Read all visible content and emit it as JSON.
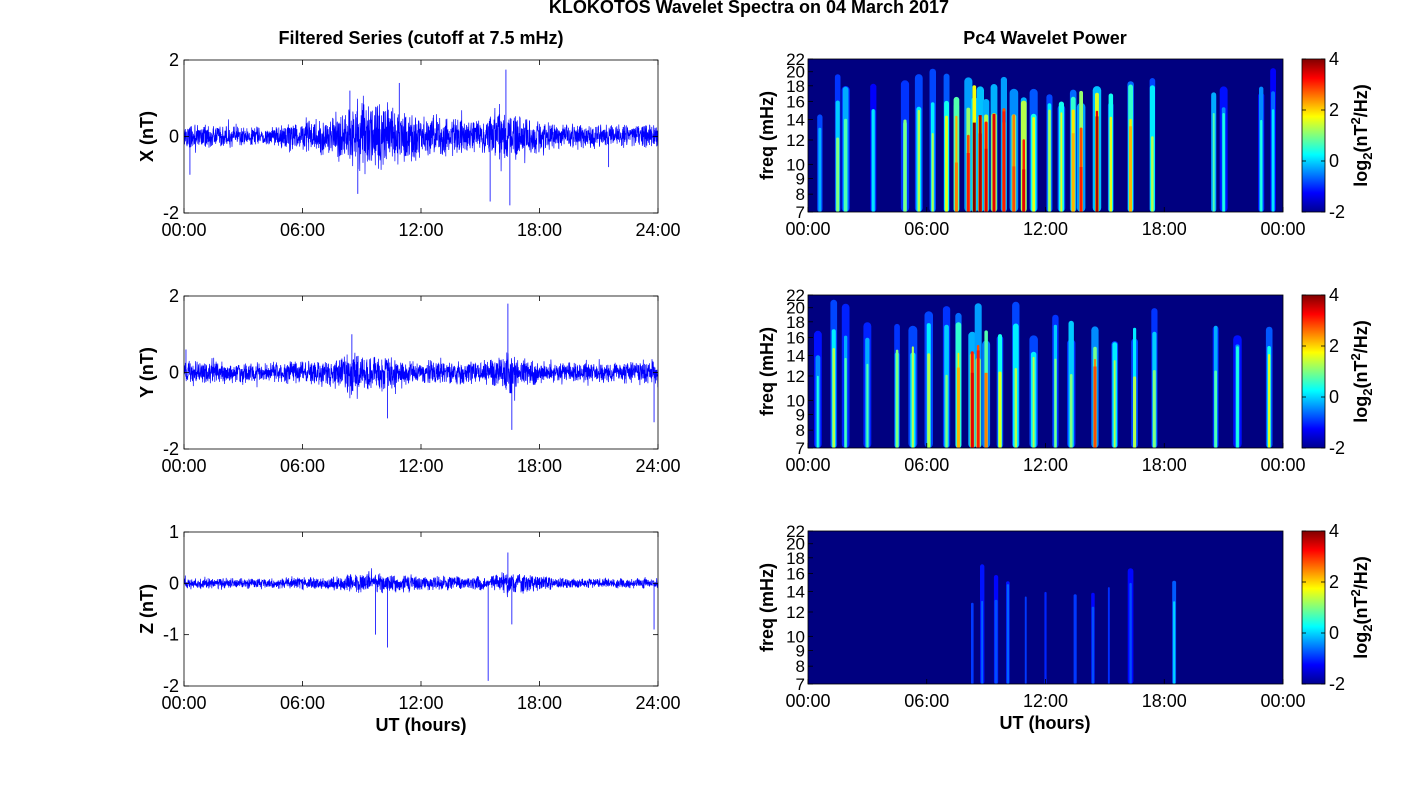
{
  "figure": {
    "title": "KLOKOTOS Wavelet Spectra on 04 March 2017",
    "left_title": "Filtered Series (cutoff at 7.5 mHz)",
    "right_title": "Pc4 Wavelet Power",
    "xlabel": "UT (hours)"
  },
  "colors": {
    "trace": "#0000ff",
    "jet_low": "#00008f",
    "jet_high": "#800000"
  },
  "chart_data": [
    {
      "type": "line",
      "panel": "X",
      "ylabel": "X (nT)",
      "x_ticks": [
        "00:00",
        "06:00",
        "12:00",
        "18:00",
        "24:00"
      ],
      "y_ticks": [
        "2",
        "0",
        "-2"
      ],
      "ylim": [
        -2,
        2
      ],
      "xlim_hours": [
        0,
        24
      ],
      "envelope": {
        "x_hours": [
          0,
          2,
          4,
          5,
          6,
          7,
          8,
          8.5,
          9,
          9.5,
          10,
          11,
          12,
          13,
          14,
          15,
          16,
          16.5,
          17,
          18,
          19,
          20,
          21,
          22,
          23,
          24
        ],
        "amplitude_nT": [
          0.3,
          0.3,
          0.25,
          0.35,
          0.4,
          0.5,
          0.7,
          0.9,
          1.0,
          0.9,
          0.9,
          0.7,
          0.6,
          0.5,
          0.5,
          0.4,
          0.6,
          0.8,
          0.6,
          0.4,
          0.3,
          0.3,
          0.3,
          0.3,
          0.3,
          0.3
        ]
      },
      "spikes": [
        {
          "x_hours": 8.4,
          "y_nT": 1.2
        },
        {
          "x_hours": 8.8,
          "y_nT": -1.5
        },
        {
          "x_hours": 10.9,
          "y_nT": 1.4
        },
        {
          "x_hours": 15.5,
          "y_nT": -1.7
        },
        {
          "x_hours": 16.3,
          "y_nT": 1.75
        },
        {
          "x_hours": 16.5,
          "y_nT": -1.8
        },
        {
          "x_hours": 21.5,
          "y_nT": -0.8
        },
        {
          "x_hours": 0.3,
          "y_nT": -1.0
        }
      ]
    },
    {
      "type": "line",
      "panel": "Y",
      "ylabel": "Y (nT)",
      "x_ticks": [
        "00:00",
        "06:00",
        "12:00",
        "18:00",
        "24:00"
      ],
      "y_ticks": [
        "2",
        "0",
        "-2"
      ],
      "ylim": [
        -2,
        2
      ],
      "xlim_hours": [
        0,
        24
      ],
      "envelope": {
        "x_hours": [
          0,
          2,
          4,
          5,
          6,
          7,
          8,
          8.5,
          9,
          9.5,
          10,
          11,
          12,
          13,
          14,
          15,
          16,
          16.5,
          17,
          18,
          19,
          20,
          21,
          22,
          23,
          24
        ],
        "amplitude_nT": [
          0.3,
          0.3,
          0.25,
          0.3,
          0.3,
          0.35,
          0.5,
          0.7,
          0.6,
          0.5,
          0.5,
          0.35,
          0.3,
          0.3,
          0.3,
          0.3,
          0.4,
          0.6,
          0.4,
          0.3,
          0.25,
          0.25,
          0.25,
          0.25,
          0.3,
          0.4
        ]
      },
      "spikes": [
        {
          "x_hours": 8.5,
          "y_nT": 1.0
        },
        {
          "x_hours": 10.3,
          "y_nT": -1.2
        },
        {
          "x_hours": 16.4,
          "y_nT": 1.8
        },
        {
          "x_hours": 16.6,
          "y_nT": -1.5
        },
        {
          "x_hours": 23.8,
          "y_nT": -1.3
        },
        {
          "x_hours": 0.1,
          "y_nT": 0.6
        }
      ]
    },
    {
      "type": "line",
      "panel": "Z",
      "ylabel": "Z (nT)",
      "x_ticks": [
        "00:00",
        "06:00",
        "12:00",
        "18:00",
        "24:00"
      ],
      "y_ticks": [
        "1",
        "0",
        "-1",
        "-2"
      ],
      "ylim": [
        -2,
        1
      ],
      "xlim_hours": [
        0,
        24
      ],
      "envelope": {
        "x_hours": [
          0,
          2,
          4,
          6,
          8,
          9,
          10,
          11,
          12,
          13,
          14,
          15,
          16,
          17,
          18,
          20,
          22,
          24
        ],
        "amplitude_nT": [
          0.1,
          0.1,
          0.1,
          0.12,
          0.15,
          0.2,
          0.2,
          0.18,
          0.15,
          0.15,
          0.14,
          0.14,
          0.2,
          0.2,
          0.14,
          0.1,
          0.1,
          0.1
        ]
      },
      "spikes": [
        {
          "x_hours": 9.7,
          "y_nT": -1.0
        },
        {
          "x_hours": 10.3,
          "y_nT": -1.25
        },
        {
          "x_hours": 15.4,
          "y_nT": -1.9
        },
        {
          "x_hours": 16.4,
          "y_nT": 0.6
        },
        {
          "x_hours": 16.6,
          "y_nT": -0.8
        },
        {
          "x_hours": 23.8,
          "y_nT": -0.9
        }
      ]
    },
    {
      "type": "heatmap",
      "panel": "X wavelet",
      "ylabel": "freq (mHz)",
      "x_ticks": [
        "00:00",
        "06:00",
        "12:00",
        "18:00",
        "00:00"
      ],
      "y_ticks": [
        "22",
        "20",
        "18",
        "16",
        "14",
        "12",
        "10",
        "9",
        "8",
        "7"
      ],
      "colorbar_label": "log2(nT2/Hz)",
      "colorbar_ticks": [
        "4",
        "2",
        "0",
        "-2"
      ],
      "clim": [
        -2,
        4
      ],
      "freq_range_mHz": [
        7,
        22
      ],
      "stripes": [
        {
          "t_hours": 0.6,
          "peak": 0.3
        },
        {
          "t_hours": 1.5,
          "peak": 0.5
        },
        {
          "t_hours": 1.9,
          "peak": 0.45
        },
        {
          "t_hours": 3.3,
          "peak": 0.35
        },
        {
          "t_hours": 4.9,
          "peak": 0.5
        },
        {
          "t_hours": 5.6,
          "peak": 0.55
        },
        {
          "t_hours": 6.3,
          "peak": 0.55
        },
        {
          "t_hours": 7.0,
          "peak": 0.6
        },
        {
          "t_hours": 7.5,
          "peak": 0.7
        },
        {
          "t_hours": 8.1,
          "peak": 0.8
        },
        {
          "t_hours": 8.4,
          "peak": 0.95
        },
        {
          "t_hours": 8.7,
          "peak": 0.9
        },
        {
          "t_hours": 9.0,
          "peak": 0.85
        },
        {
          "t_hours": 9.4,
          "peak": 0.85
        },
        {
          "t_hours": 9.9,
          "peak": 0.8
        },
        {
          "t_hours": 10.4,
          "peak": 0.75
        },
        {
          "t_hours": 10.9,
          "peak": 0.85
        },
        {
          "t_hours": 11.4,
          "peak": 0.6
        },
        {
          "t_hours": 12.2,
          "peak": 0.55
        },
        {
          "t_hours": 12.8,
          "peak": 0.6
        },
        {
          "t_hours": 13.4,
          "peak": 0.65
        },
        {
          "t_hours": 13.8,
          "peak": 0.8
        },
        {
          "t_hours": 14.6,
          "peak": 0.9
        },
        {
          "t_hours": 15.3,
          "peak": 0.6
        },
        {
          "t_hours": 16.3,
          "peak": 0.65
        },
        {
          "t_hours": 17.4,
          "peak": 0.55
        },
        {
          "t_hours": 20.5,
          "peak": 0.45
        },
        {
          "t_hours": 21.0,
          "peak": 0.4
        },
        {
          "t_hours": 22.9,
          "peak": 0.4
        },
        {
          "t_hours": 23.5,
          "peak": 0.35
        }
      ]
    },
    {
      "type": "heatmap",
      "panel": "Y wavelet",
      "ylabel": "freq (mHz)",
      "x_ticks": [
        "00:00",
        "06:00",
        "12:00",
        "18:00",
        "00:00"
      ],
      "y_ticks": [
        "22",
        "20",
        "18",
        "16",
        "14",
        "12",
        "10",
        "9",
        "8",
        "7"
      ],
      "colorbar_label": "log2(nT2/Hz)",
      "colorbar_ticks": [
        "4",
        "2",
        "0",
        "-2"
      ],
      "clim": [
        -2,
        4
      ],
      "freq_range_mHz": [
        7,
        22
      ],
      "stripes": [
        {
          "t_hours": 0.5,
          "peak": 0.4
        },
        {
          "t_hours": 1.3,
          "peak": 0.55
        },
        {
          "t_hours": 1.9,
          "peak": 0.45
        },
        {
          "t_hours": 3.0,
          "peak": 0.45
        },
        {
          "t_hours": 4.5,
          "peak": 0.5
        },
        {
          "t_hours": 5.3,
          "peak": 0.55
        },
        {
          "t_hours": 6.1,
          "peak": 0.55
        },
        {
          "t_hours": 7.0,
          "peak": 0.5
        },
        {
          "t_hours": 7.6,
          "peak": 0.65
        },
        {
          "t_hours": 8.3,
          "peak": 0.85
        },
        {
          "t_hours": 8.6,
          "peak": 0.8
        },
        {
          "t_hours": 9.0,
          "peak": 0.7
        },
        {
          "t_hours": 9.7,
          "peak": 0.6
        },
        {
          "t_hours": 10.5,
          "peak": 0.55
        },
        {
          "t_hours": 11.4,
          "peak": 0.55
        },
        {
          "t_hours": 12.5,
          "peak": 0.5
        },
        {
          "t_hours": 13.3,
          "peak": 0.5
        },
        {
          "t_hours": 14.5,
          "peak": 0.75
        },
        {
          "t_hours": 15.5,
          "peak": 0.55
        },
        {
          "t_hours": 16.5,
          "peak": 0.55
        },
        {
          "t_hours": 17.5,
          "peak": 0.5
        },
        {
          "t_hours": 20.6,
          "peak": 0.45
        },
        {
          "t_hours": 21.7,
          "peak": 0.4
        },
        {
          "t_hours": 23.3,
          "peak": 0.6
        }
      ]
    },
    {
      "type": "heatmap",
      "panel": "Z wavelet",
      "ylabel": "freq (mHz)",
      "x_ticks": [
        "00:00",
        "06:00",
        "12:00",
        "18:00",
        "00:00"
      ],
      "y_ticks": [
        "22",
        "20",
        "18",
        "16",
        "14",
        "12",
        "10",
        "9",
        "8",
        "7"
      ],
      "colorbar_label": "log2(nT2/Hz)",
      "colorbar_ticks": [
        "4",
        "2",
        "0",
        "-2"
      ],
      "clim": [
        -2,
        4
      ],
      "freq_range_mHz": [
        7,
        22
      ],
      "stripes": [
        {
          "t_hours": 8.3,
          "peak": 0.18
        },
        {
          "t_hours": 8.8,
          "peak": 0.22
        },
        {
          "t_hours": 9.5,
          "peak": 0.2
        },
        {
          "t_hours": 10.1,
          "peak": 0.22
        },
        {
          "t_hours": 11.0,
          "peak": 0.18
        },
        {
          "t_hours": 12.0,
          "peak": 0.16
        },
        {
          "t_hours": 13.5,
          "peak": 0.18
        },
        {
          "t_hours": 14.4,
          "peak": 0.2
        },
        {
          "t_hours": 15.2,
          "peak": 0.17
        },
        {
          "t_hours": 16.3,
          "peak": 0.2
        },
        {
          "t_hours": 18.5,
          "peak": 0.33
        }
      ]
    }
  ]
}
